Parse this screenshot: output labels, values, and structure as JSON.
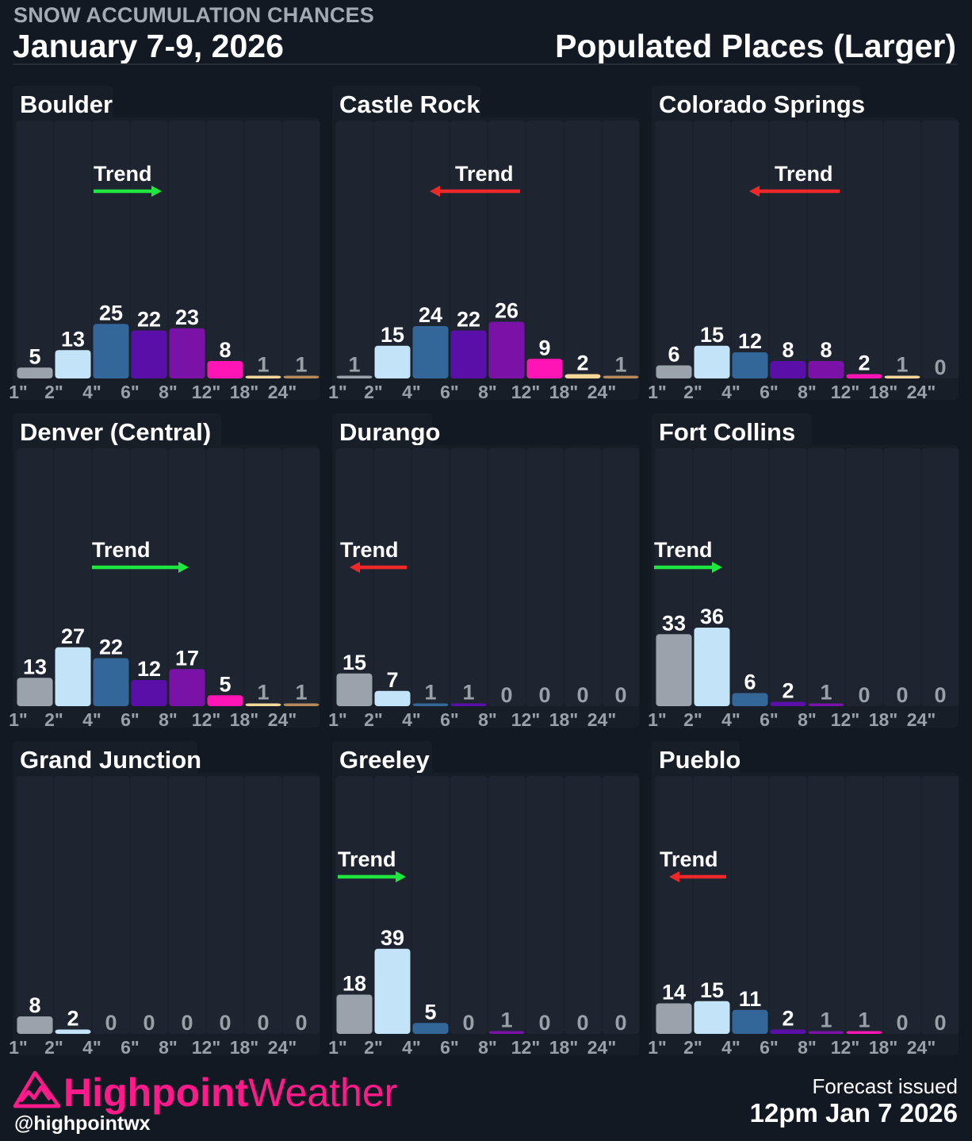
{
  "header": {
    "kicker": "SNOW ACCUMULATION CHANCES",
    "date_range": "January 7-9, 2026",
    "subtitle": "Populated Places (Larger)"
  },
  "footer": {
    "brand_primary": "Highpoint",
    "brand_secondary": "Weather",
    "handle": "@highpointwx",
    "issued_label": "Forecast issued",
    "issued_value": "12pm Jan 7 2026"
  },
  "colors": {
    "background": "#131923",
    "panel": "#181e28",
    "column": "#1e2531",
    "brand": "#ff1a8c",
    "trend_up": "#1ee83f",
    "trend_down": "#ee2828",
    "bins": [
      "#9aa3ac",
      "#c3e4f8",
      "#336699",
      "#5a10a8",
      "#7a12a8",
      "#ff14b4",
      "#f7d79a",
      "#b68a5c"
    ]
  },
  "chart_data": [
    {
      "type": "bar",
      "title": "Boulder",
      "categories": [
        "1\"",
        "2\"",
        "4\"",
        "6\"",
        "8\"",
        "12\"",
        "18\"",
        "24\""
      ],
      "values": [
        5,
        13,
        25,
        22,
        23,
        8,
        1,
        1
      ],
      "ylim": [
        0,
        100
      ],
      "trend": {
        "label": "Trend",
        "direction": "up"
      }
    },
    {
      "type": "bar",
      "title": "Castle Rock",
      "categories": [
        "1\"",
        "2\"",
        "4\"",
        "6\"",
        "8\"",
        "12\"",
        "18\"",
        "24\""
      ],
      "values": [
        1,
        15,
        24,
        22,
        26,
        9,
        2,
        1
      ],
      "ylim": [
        0,
        100
      ],
      "trend": {
        "label": "Trend",
        "direction": "down"
      }
    },
    {
      "type": "bar",
      "title": "Colorado Springs",
      "categories": [
        "1\"",
        "2\"",
        "4\"",
        "6\"",
        "8\"",
        "12\"",
        "18\"",
        "24\""
      ],
      "values": [
        6,
        15,
        12,
        8,
        8,
        2,
        1,
        0
      ],
      "ylim": [
        0,
        100
      ],
      "trend": {
        "label": "Trend",
        "direction": "down"
      }
    },
    {
      "type": "bar",
      "title": "Denver (Central)",
      "categories": [
        "1\"",
        "2\"",
        "4\"",
        "6\"",
        "8\"",
        "12\"",
        "18\"",
        "24\""
      ],
      "values": [
        13,
        27,
        22,
        12,
        17,
        5,
        1,
        1
      ],
      "ylim": [
        0,
        100
      ],
      "trend": {
        "label": "Trend",
        "direction": "up"
      }
    },
    {
      "type": "bar",
      "title": "Durango",
      "categories": [
        "1\"",
        "2\"",
        "4\"",
        "6\"",
        "8\"",
        "12\"",
        "18\"",
        "24\""
      ],
      "values": [
        15,
        7,
        1,
        1,
        0,
        0,
        0,
        0
      ],
      "ylim": [
        0,
        100
      ],
      "trend": {
        "label": "Trend",
        "direction": "down"
      }
    },
    {
      "type": "bar",
      "title": "Fort Collins",
      "categories": [
        "1\"",
        "2\"",
        "4\"",
        "6\"",
        "8\"",
        "12\"",
        "18\"",
        "24\""
      ],
      "values": [
        33,
        36,
        6,
        2,
        1,
        0,
        0,
        0
      ],
      "ylim": [
        0,
        100
      ],
      "trend": {
        "label": "Trend",
        "direction": "up"
      }
    },
    {
      "type": "bar",
      "title": "Grand Junction",
      "categories": [
        "1\"",
        "2\"",
        "4\"",
        "6\"",
        "8\"",
        "12\"",
        "18\"",
        "24\""
      ],
      "values": [
        8,
        2,
        0,
        0,
        0,
        0,
        0,
        0
      ],
      "ylim": [
        0,
        100
      ],
      "trend": null
    },
    {
      "type": "bar",
      "title": "Greeley",
      "categories": [
        "1\"",
        "2\"",
        "4\"",
        "6\"",
        "8\"",
        "12\"",
        "18\"",
        "24\""
      ],
      "values": [
        18,
        39,
        5,
        0,
        1,
        0,
        0,
        0
      ],
      "ylim": [
        0,
        100
      ],
      "trend": {
        "label": "Trend",
        "direction": "up"
      }
    },
    {
      "type": "bar",
      "title": "Pueblo",
      "categories": [
        "1\"",
        "2\"",
        "4\"",
        "6\"",
        "8\"",
        "12\"",
        "18\"",
        "24\""
      ],
      "values": [
        14,
        15,
        11,
        2,
        1,
        1,
        0,
        0
      ],
      "ylim": [
        0,
        100
      ],
      "trend": {
        "label": "Trend",
        "direction": "down"
      }
    }
  ]
}
